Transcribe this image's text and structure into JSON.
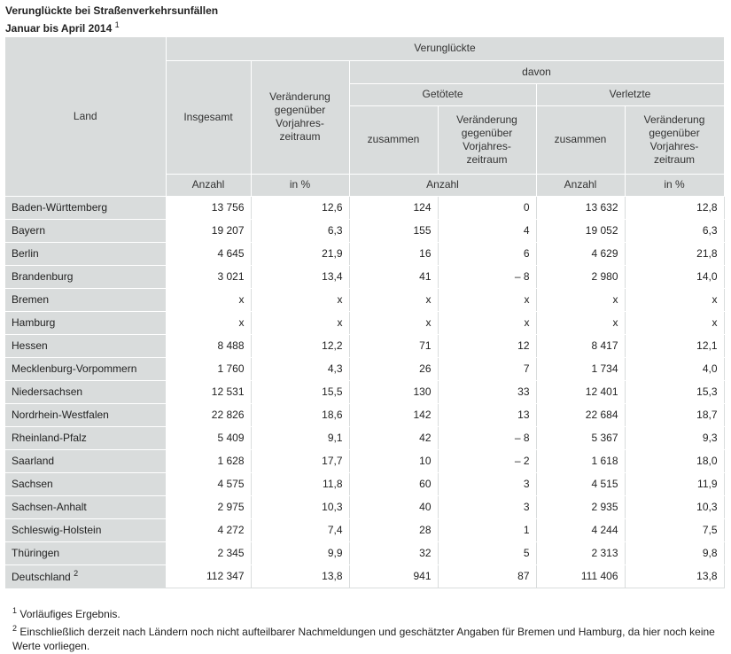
{
  "title": {
    "line1": "Verunglückte bei Straßenverkehrsunfällen",
    "line2": "Januar bis April 2014",
    "footnote_ref": "1"
  },
  "headers": {
    "land": "Land",
    "verunglueckte": "Verunglückte",
    "insgesamt": "Insgesamt",
    "veraenderung": "Veränderung gegenüber Vorjahres-zeitraum",
    "davon": "davon",
    "getoetete": "Getötete",
    "verletzte": "Verletzte",
    "zusammen": "zusammen",
    "anzahl": "Anzahl",
    "in_prozent": "in %"
  },
  "rows": [
    {
      "land": "Baden-Württemberg",
      "fn": "",
      "insgesamt": "13 756",
      "veraenderung": "12,6",
      "getoetete": "124",
      "getoetete_veraenderung": "0",
      "verletzte": "13 632",
      "verletzte_veraenderung": "12,8"
    },
    {
      "land": "Bayern",
      "fn": "",
      "insgesamt": "19 207",
      "veraenderung": "6,3",
      "getoetete": "155",
      "getoetete_veraenderung": "4",
      "verletzte": "19 052",
      "verletzte_veraenderung": "6,3"
    },
    {
      "land": "Berlin",
      "fn": "",
      "insgesamt": "4 645",
      "veraenderung": "21,9",
      "getoetete": "16",
      "getoetete_veraenderung": "6",
      "verletzte": "4 629",
      "verletzte_veraenderung": "21,8"
    },
    {
      "land": "Brandenburg",
      "fn": "",
      "insgesamt": "3 021",
      "veraenderung": "13,4",
      "getoetete": "41",
      "getoetete_veraenderung": "– 8",
      "verletzte": "2 980",
      "verletzte_veraenderung": "14,0"
    },
    {
      "land": "Bremen",
      "fn": "",
      "insgesamt": "x",
      "veraenderung": "x",
      "getoetete": "x",
      "getoetete_veraenderung": "x",
      "verletzte": "x",
      "verletzte_veraenderung": "x"
    },
    {
      "land": "Hamburg",
      "fn": "",
      "insgesamt": "x",
      "veraenderung": "x",
      "getoetete": "x",
      "getoetete_veraenderung": "x",
      "verletzte": "x",
      "verletzte_veraenderung": "x"
    },
    {
      "land": "Hessen",
      "fn": "",
      "insgesamt": "8 488",
      "veraenderung": "12,2",
      "getoetete": "71",
      "getoetete_veraenderung": "12",
      "verletzte": "8 417",
      "verletzte_veraenderung": "12,1"
    },
    {
      "land": "Mecklenburg-Vorpommern",
      "fn": "",
      "insgesamt": "1 760",
      "veraenderung": "4,3",
      "getoetete": "26",
      "getoetete_veraenderung": "7",
      "verletzte": "1 734",
      "verletzte_veraenderung": "4,0"
    },
    {
      "land": "Niedersachsen",
      "fn": "",
      "insgesamt": "12 531",
      "veraenderung": "15,5",
      "getoetete": "130",
      "getoetete_veraenderung": "33",
      "verletzte": "12 401",
      "verletzte_veraenderung": "15,3"
    },
    {
      "land": "Nordrhein-Westfalen",
      "fn": "",
      "insgesamt": "22 826",
      "veraenderung": "18,6",
      "getoetete": "142",
      "getoetete_veraenderung": "13",
      "verletzte": "22 684",
      "verletzte_veraenderung": "18,7"
    },
    {
      "land": "Rheinland-Pfalz",
      "fn": "",
      "insgesamt": "5 409",
      "veraenderung": "9,1",
      "getoetete": "42",
      "getoetete_veraenderung": "– 8",
      "verletzte": "5 367",
      "verletzte_veraenderung": "9,3"
    },
    {
      "land": "Saarland",
      "fn": "",
      "insgesamt": "1 628",
      "veraenderung": "17,7",
      "getoetete": "10",
      "getoetete_veraenderung": "– 2",
      "verletzte": "1 618",
      "verletzte_veraenderung": "18,0"
    },
    {
      "land": "Sachsen",
      "fn": "",
      "insgesamt": "4 575",
      "veraenderung": "11,8",
      "getoetete": "60",
      "getoetete_veraenderung": "3",
      "verletzte": "4 515",
      "verletzte_veraenderung": "11,9"
    },
    {
      "land": "Sachsen-Anhalt",
      "fn": "",
      "insgesamt": "2 975",
      "veraenderung": "10,3",
      "getoetete": "40",
      "getoetete_veraenderung": "3",
      "verletzte": "2 935",
      "verletzte_veraenderung": "10,3"
    },
    {
      "land": "Schleswig-Holstein",
      "fn": "",
      "insgesamt": "4 272",
      "veraenderung": "7,4",
      "getoetete": "28",
      "getoetete_veraenderung": "1",
      "verletzte": "4 244",
      "verletzte_veraenderung": "7,5"
    },
    {
      "land": "Thüringen",
      "fn": "",
      "insgesamt": "2 345",
      "veraenderung": "9,9",
      "getoetete": "32",
      "getoetete_veraenderung": "5",
      "verletzte": "2 313",
      "verletzte_veraenderung": "9,8"
    },
    {
      "land": "Deutschland",
      "fn": "2",
      "insgesamt": "112 347",
      "veraenderung": "13,8",
      "getoetete": "941",
      "getoetete_veraenderung": "87",
      "verletzte": "111 406",
      "verletzte_veraenderung": "13,8"
    }
  ],
  "footnotes": [
    {
      "num": "1",
      "text": "Vorläufiges Ergebnis."
    },
    {
      "num": "2",
      "text": "Einschließlich derzeit nach Ländern noch nicht aufteilbarer Nachmeldungen und geschätzter Angaben für Bremen und Hamburg, da hier noch keine Werte vorliegen."
    }
  ]
}
